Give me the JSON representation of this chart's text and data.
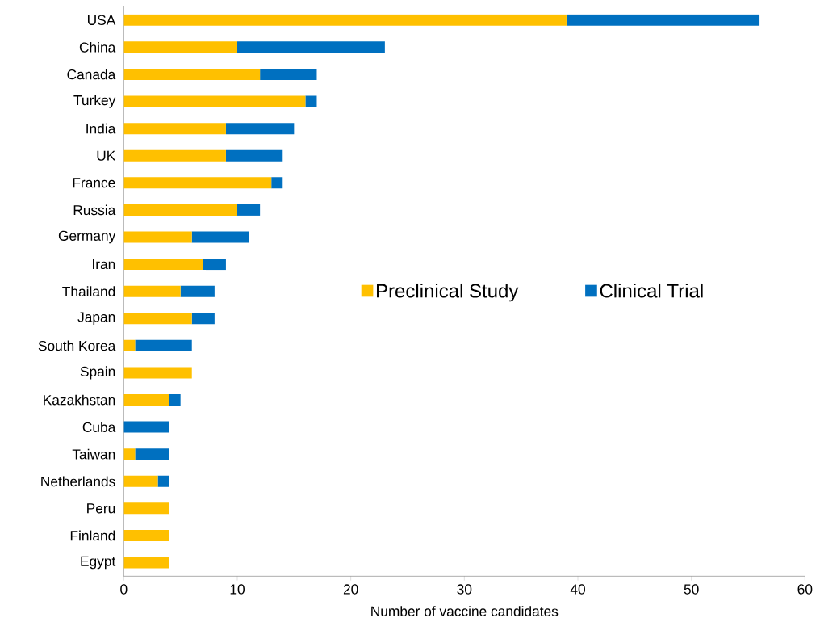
{
  "chart_data": {
    "type": "bar",
    "orientation": "horizontal",
    "stacked": true,
    "categories": [
      "USA",
      "China",
      "Canada",
      "Turkey",
      "India",
      "UK",
      "France",
      "Russia",
      "Germany",
      "Iran",
      "Thailand",
      "Japan",
      "South Korea",
      "Spain",
      "Kazakhstan",
      "Cuba",
      "Taiwan",
      "Netherlands",
      "Peru",
      "Finland",
      "Egypt"
    ],
    "series": [
      {
        "name": "Preclinical Study",
        "color": "#ffc000",
        "values": [
          39,
          10,
          12,
          16,
          9,
          9,
          13,
          10,
          6,
          7,
          5,
          6,
          1,
          6,
          4,
          0,
          1,
          3,
          4,
          4,
          4
        ]
      },
      {
        "name": "Clinical Trial",
        "color": "#0070c0",
        "values": [
          17,
          13,
          5,
          1,
          6,
          5,
          1,
          2,
          5,
          2,
          3,
          2,
          5,
          0,
          1,
          4,
          3,
          1,
          0,
          0,
          0
        ]
      }
    ],
    "xlabel": "Number of vaccine candidates",
    "xlim": [
      0,
      60
    ],
    "xticks": [
      0,
      10,
      20,
      30,
      40,
      50,
      60
    ],
    "legend": "right"
  }
}
